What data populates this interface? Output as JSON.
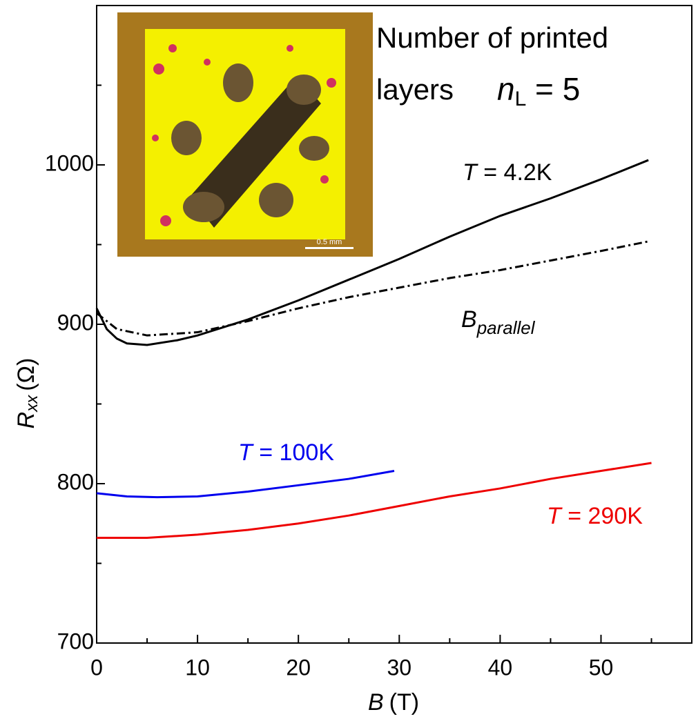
{
  "chart_data": {
    "type": "line",
    "x_label": {
      "symbol": "B",
      "unit": "(T)"
    },
    "y_label": {
      "symbol": "R",
      "subscript": "xx",
      "unit": "(Ω)"
    },
    "inset_text": [
      "Number of printed",
      "layers"
    ],
    "inset_equation": {
      "symbol": "n",
      "subscript": "L",
      "text": " = 5"
    },
    "inset_scale_label": "0.5 mm",
    "xlim": [
      0,
      59
    ],
    "ylim": [
      700,
      1100
    ],
    "xticks": [
      0,
      10,
      20,
      30,
      40,
      50
    ],
    "xminor_ticks": [
      5,
      15,
      25,
      35,
      45,
      55
    ],
    "yticks": [
      700,
      800,
      900,
      1000
    ],
    "yminor_ticks": [
      750,
      850,
      950,
      1050
    ],
    "series": [
      {
        "name": "T = 4.2K",
        "color": "#000000",
        "dash": false,
        "x": [
          0,
          1,
          2,
          3,
          5,
          8,
          10,
          15,
          20,
          25,
          30,
          35,
          40,
          45,
          50,
          54.7
        ],
        "values": [
          910,
          897,
          891,
          888,
          887,
          890,
          893,
          903,
          915,
          928,
          941,
          955,
          968,
          979,
          991,
          1003
        ]
      },
      {
        "name": "B",
        "name_subscript": "parallel",
        "color": "#000000",
        "dash": true,
        "x": [
          0,
          2,
          5,
          10,
          15,
          20,
          25,
          30,
          35,
          40,
          45,
          50,
          54.7
        ],
        "values": [
          907,
          897,
          893,
          895,
          902,
          910,
          917,
          923,
          929,
          934,
          940,
          946,
          952
        ]
      },
      {
        "name": "T = 100K",
        "color": "#0000ee",
        "dash": false,
        "x": [
          0,
          3,
          6,
          10,
          15,
          20,
          25,
          29.5
        ],
        "values": [
          794,
          792,
          791.5,
          792,
          795,
          799,
          803,
          808
        ]
      },
      {
        "name": "T = 290K",
        "color": "#ee0000",
        "dash": false,
        "x": [
          0,
          5,
          10,
          15,
          20,
          25,
          30,
          35,
          40,
          45,
          50,
          55
        ],
        "values": [
          766,
          766,
          768,
          771,
          775,
          780,
          786,
          792,
          797,
          803,
          808,
          813
        ]
      }
    ]
  }
}
